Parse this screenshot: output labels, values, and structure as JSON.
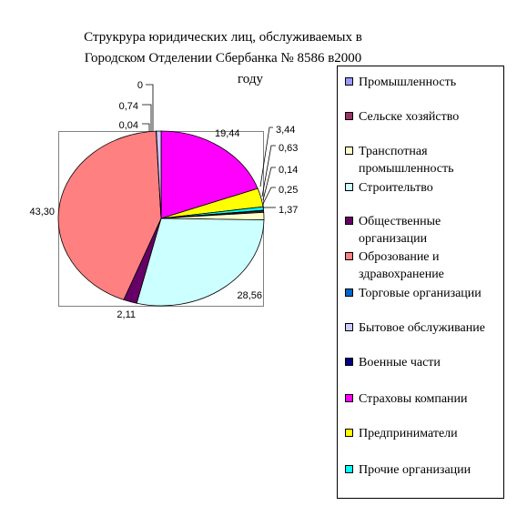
{
  "chart_data": {
    "type": "pie",
    "title_lines": [
      "Струкрура юридических лиц, обслуживаемых в",
      "Городском Отделении Сбербанка № 8586 в2000",
      "году"
    ],
    "categories": [
      "Промышленность",
      "Сельске хозяйство",
      "Транспотная промышленность",
      "Строительтво",
      "Общественные организации",
      "Оброзование и здравохранение",
      "Торговые организации",
      "Бытовое обслуживание",
      "Военные части",
      "Страховы компании",
      "Предприниматели",
      "Прочие организации"
    ],
    "values": [
      0.14,
      0.25,
      1.37,
      28.56,
      2.11,
      43.3,
      0.04,
      0.74,
      0,
      19.44,
      3.44,
      0.63
    ],
    "value_labels": [
      "0,14",
      "0,25",
      "1,37",
      "28,56",
      "2,11",
      "43,30",
      "0,04",
      "0,74",
      "0",
      "19,44",
      "3,44",
      "0,63"
    ],
    "colors": [
      "#9999ff",
      "#993366",
      "#ffffcc",
      "#ccffff",
      "#660066",
      "#ff8080",
      "#0066cc",
      "#ccccff",
      "#000080",
      "#ff00ff",
      "#ffff00",
      "#00ffff"
    ],
    "legend_position": "right"
  }
}
